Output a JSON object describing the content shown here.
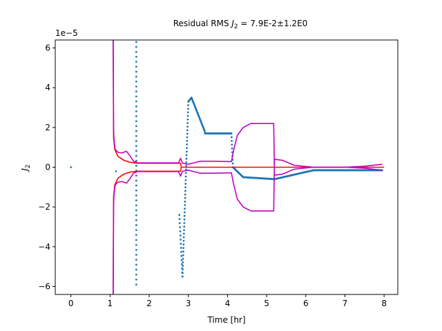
{
  "chart_data": {
    "type": "scatter",
    "title": "Residual RMS J₂ = 7.9E-2±1.2E0",
    "title_parts": {
      "prefix": "Residual RMS ",
      "symbol": "J",
      "subscript": "2",
      "suffix": " = 7.9E-2±1.2E0"
    },
    "xlabel": "Time [hr]",
    "ylabel_parts": {
      "symbol": "J",
      "subscript": "2"
    },
    "y_offset_text": "1e−5",
    "xlim": [
      -0.4,
      8.35
    ],
    "ylim": [
      -6.4,
      6.4
    ],
    "x_ticks": [
      0,
      1,
      2,
      3,
      4,
      5,
      6,
      7,
      8
    ],
    "x_tick_labels": [
      "0",
      "1",
      "2",
      "3",
      "4",
      "5",
      "6",
      "7",
      "8"
    ],
    "y_ticks": [
      -6,
      -4,
      -2,
      0,
      2,
      4,
      6
    ],
    "y_tick_labels": [
      "−6",
      "−4",
      "−2",
      "0",
      "2",
      "4",
      "6"
    ],
    "grid": false,
    "colors": {
      "residuals": "#1f77b4",
      "estimate": "#ff0000",
      "covariance": "#c000c0"
    },
    "series": [
      {
        "kind": "scatter",
        "color": "#1f77b4",
        "segments": [
          {
            "points": [
              [
                0.0,
                0.0
              ],
              [
                1.15,
                -0.2
              ]
            ]
          },
          {
            "x_start": 1.67,
            "x_end": 1.67,
            "y_start": -5.9,
            "y_end": 6.3,
            "n": 50
          },
          {
            "x_start": 2.77,
            "x_end": 2.85,
            "y_start": -2.4,
            "y_end": -5.5,
            "n": 16
          },
          {
            "x_start": 2.85,
            "x_end": 3.0,
            "y_start": -5.5,
            "y_end": 3.3,
            "n": 50
          },
          {
            "x_start": 3.0,
            "x_end": 3.08,
            "y_start": 3.3,
            "y_end": 3.5,
            "n": 8
          },
          {
            "x_start": 3.08,
            "x_end": 3.42,
            "y_start": 3.5,
            "y_end": 1.8,
            "n": 38
          },
          {
            "x_start": 3.42,
            "x_end": 4.1,
            "y_start": 1.7,
            "y_end": 1.7,
            "n": 58
          },
          {
            "x_start": 4.1,
            "x_end": 4.14,
            "y_start": 1.7,
            "y_end": 0.0,
            "n": 10
          },
          {
            "x_start": 4.14,
            "x_end": 4.4,
            "y_start": 0.0,
            "y_end": -0.5,
            "n": 22
          },
          {
            "x_start": 4.4,
            "x_end": 5.2,
            "y_start": -0.5,
            "y_end": -0.6,
            "n": 70
          },
          {
            "x_start": 5.2,
            "x_end": 6.2,
            "y_start": -0.6,
            "y_end": -0.15,
            "n": 80
          },
          {
            "x_start": 6.2,
            "x_end": 7.95,
            "y_start": -0.15,
            "y_end": -0.15,
            "n": 140
          }
        ]
      },
      {
        "kind": "line",
        "color": "#ff0000",
        "points": [
          [
            1.08,
            6.4
          ],
          [
            1.09,
            1.5
          ],
          [
            1.12,
            0.9
          ],
          [
            1.2,
            0.55
          ],
          [
            1.35,
            0.35
          ],
          [
            1.5,
            0.25
          ],
          [
            1.7,
            0.2
          ],
          [
            2.8,
            0.2
          ],
          [
            2.82,
            0.0
          ],
          [
            8.0,
            0.0
          ]
        ]
      },
      {
        "kind": "line",
        "color": "#ff0000",
        "points": [
          [
            1.08,
            -6.4
          ],
          [
            1.09,
            -1.5
          ],
          [
            1.12,
            -0.9
          ],
          [
            1.2,
            -0.55
          ],
          [
            1.35,
            -0.35
          ],
          [
            1.5,
            -0.25
          ],
          [
            1.7,
            -0.2
          ],
          [
            2.8,
            -0.2
          ],
          [
            2.82,
            0.0
          ]
        ]
      },
      {
        "kind": "line",
        "color": "#c000c0",
        "points": [
          [
            1.08,
            6.4
          ],
          [
            1.09,
            1.9
          ],
          [
            1.1,
            1.4
          ],
          [
            1.13,
            0.9
          ],
          [
            1.2,
            0.75
          ],
          [
            1.3,
            0.72
          ],
          [
            1.42,
            0.8
          ],
          [
            1.5,
            0.6
          ],
          [
            1.6,
            0.3
          ],
          [
            1.7,
            0.22
          ],
          [
            2.75,
            0.22
          ],
          [
            2.8,
            0.45
          ],
          [
            2.85,
            0.2
          ],
          [
            3.0,
            0.15
          ],
          [
            3.3,
            0.3
          ],
          [
            3.7,
            0.3
          ],
          [
            4.1,
            0.28
          ],
          [
            4.15,
            0.8
          ],
          [
            4.25,
            1.6
          ],
          [
            4.4,
            2.0
          ],
          [
            4.6,
            2.2
          ],
          [
            5.18,
            2.2
          ],
          [
            5.2,
            -0.4
          ],
          [
            5.4,
            -0.35
          ],
          [
            5.7,
            -0.1
          ],
          [
            6.2,
            0.0
          ],
          [
            7.0,
            0.0
          ],
          [
            7.5,
            0.05
          ],
          [
            7.95,
            0.15
          ]
        ]
      },
      {
        "kind": "line",
        "color": "#c000c0",
        "points": [
          [
            1.08,
            -6.4
          ],
          [
            1.09,
            -1.9
          ],
          [
            1.1,
            -1.4
          ],
          [
            1.13,
            -0.9
          ],
          [
            1.2,
            -0.75
          ],
          [
            1.3,
            -0.72
          ],
          [
            1.42,
            -0.8
          ],
          [
            1.5,
            -0.6
          ],
          [
            1.6,
            -0.3
          ],
          [
            1.7,
            -0.22
          ],
          [
            2.75,
            -0.22
          ],
          [
            2.8,
            -0.45
          ],
          [
            2.85,
            -0.2
          ],
          [
            3.0,
            -0.15
          ],
          [
            3.3,
            -0.3
          ],
          [
            3.7,
            -0.3
          ],
          [
            4.1,
            -0.28
          ],
          [
            4.15,
            -0.8
          ],
          [
            4.25,
            -1.6
          ],
          [
            4.4,
            -2.0
          ],
          [
            4.6,
            -2.2
          ],
          [
            5.18,
            -2.2
          ],
          [
            5.2,
            0.4
          ],
          [
            5.4,
            0.35
          ],
          [
            5.7,
            0.1
          ],
          [
            6.2,
            0.0
          ],
          [
            7.0,
            0.0
          ],
          [
            7.5,
            -0.05
          ],
          [
            7.95,
            -0.15
          ]
        ]
      }
    ]
  }
}
